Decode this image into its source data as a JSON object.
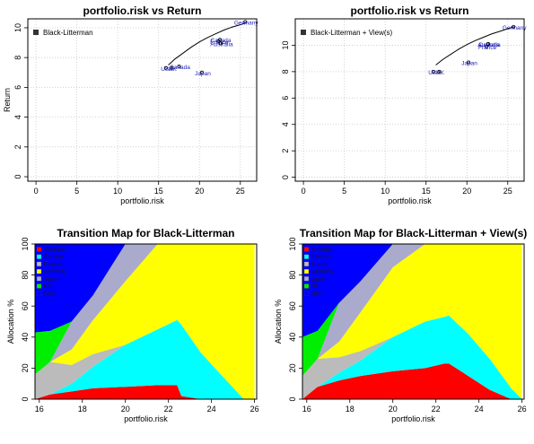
{
  "chart_data": [
    {
      "type": "scatter",
      "title": "portfolio.risk vs Return",
      "xlabel": "portfolio.risk",
      "ylabel": "Return",
      "xlim": [
        -1,
        27
      ],
      "ylim": [
        -0.3,
        10.6
      ],
      "xticks": [
        "0",
        "5",
        "10",
        "15",
        "20",
        "25"
      ],
      "yticks": [
        "0",
        "2",
        "4",
        "6",
        "8",
        "10"
      ],
      "grid": true,
      "legend": [
        "Black-Litterman"
      ],
      "legend_position": "top-left",
      "frontier": {
        "x": [
          16.2,
          17,
          18,
          19,
          20,
          21,
          22,
          23,
          24,
          25,
          25.8
        ],
        "y": [
          7.5,
          7.9,
          8.3,
          8.7,
          9.05,
          9.35,
          9.6,
          9.85,
          10.05,
          10.2,
          10.35
        ]
      },
      "points": [
        {
          "label": "USA",
          "x": 15.9,
          "y": 7.3
        },
        {
          "label": "UK",
          "x": 16.6,
          "y": 7.3
        },
        {
          "label": "Canada",
          "x": 17.5,
          "y": 7.4
        },
        {
          "label": "Japan",
          "x": 20.3,
          "y": 7.0
        },
        {
          "label": "France",
          "x": 22.3,
          "y": 9.1
        },
        {
          "label": "Canada",
          "x": 22.5,
          "y": 9.2
        },
        {
          "label": "Australia",
          "x": 22.6,
          "y": 8.95
        },
        {
          "label": "Germany",
          "x": 25.6,
          "y": 10.4
        }
      ]
    },
    {
      "type": "scatter",
      "title": "portfolio.risk vs Return",
      "xlabel": "portfolio.risk",
      "ylabel": "",
      "xlim": [
        -1,
        27
      ],
      "ylim": [
        -0.3,
        12.0
      ],
      "xticks": [
        "0",
        "5",
        "10",
        "15",
        "20",
        "25"
      ],
      "yticks": [
        "0",
        "2",
        "4",
        "6",
        "8",
        "10"
      ],
      "grid": true,
      "legend": [
        "Black-Litterman + View(s)"
      ],
      "legend_position": "top-left",
      "frontier": {
        "x": [
          16.2,
          17,
          18,
          19,
          20,
          21,
          22,
          23,
          24,
          25,
          25.8
        ],
        "y": [
          8.5,
          8.9,
          9.3,
          9.7,
          10.05,
          10.35,
          10.6,
          10.85,
          11.05,
          11.25,
          11.4
        ]
      },
      "points": [
        {
          "label": "USA",
          "x": 15.9,
          "y": 8.0
        },
        {
          "label": "UK",
          "x": 16.6,
          "y": 8.0
        },
        {
          "label": "Japan",
          "x": 20.2,
          "y": 8.7
        },
        {
          "label": "France",
          "x": 22.4,
          "y": 9.9
        },
        {
          "label": "Canada",
          "x": 22.6,
          "y": 10.1
        },
        {
          "label": "Australia",
          "x": 22.6,
          "y": 10.1
        },
        {
          "label": "Germany",
          "x": 25.7,
          "y": 11.4
        }
      ]
    },
    {
      "type": "area",
      "title": "Transition Map for Black-Litterman",
      "xlabel": "portfolio.risk",
      "ylabel": "Allocation %",
      "xlim": [
        15.8,
        26.1
      ],
      "ylim": [
        0,
        100
      ],
      "xticks": [
        "16",
        "18",
        "20",
        "22",
        "24",
        "26"
      ],
      "yticks": [
        "0",
        "20",
        "40",
        "60",
        "80",
        "100"
      ],
      "legend_position": "top-left",
      "x": [
        15.8,
        16.5,
        17.5,
        18.5,
        20.0,
        21.5,
        22.4,
        22.6,
        23.5,
        24.5,
        25.5,
        26.0
      ],
      "series": [
        {
          "name": "Australia",
          "color": "#ff0000",
          "values": [
            0,
            3,
            5,
            7,
            8,
            9,
            9,
            2,
            0,
            0,
            0,
            0
          ]
        },
        {
          "name": "Canada",
          "color": "#00ffff",
          "values": [
            0,
            0,
            5,
            14,
            27,
            36,
            42,
            46,
            30,
            15,
            0,
            0
          ]
        },
        {
          "name": "France",
          "color": "#bbbbbb",
          "values": [
            16,
            21,
            12,
            8,
            0,
            0,
            0,
            0,
            0,
            0,
            0,
            0
          ]
        },
        {
          "name": "Germany",
          "color": "#ffff00",
          "values": [
            0,
            0,
            10,
            22,
            41,
            55,
            49,
            52,
            70,
            85,
            100,
            100
          ]
        },
        {
          "name": "Japan",
          "color": "#aaaacc",
          "values": [
            0,
            0,
            18,
            16,
            24,
            0,
            0,
            0,
            0,
            0,
            0,
            0
          ]
        },
        {
          "name": "UK",
          "color": "#00ee00",
          "values": [
            27,
            20,
            0,
            0,
            0,
            0,
            0,
            0,
            0,
            0,
            0,
            0
          ]
        },
        {
          "name": "USA",
          "color": "#0000ff",
          "values": [
            57,
            56,
            50,
            33,
            0,
            0,
            0,
            0,
            0,
            0,
            0,
            0
          ]
        }
      ]
    },
    {
      "type": "area",
      "title": "Transition Map for Black-Litterman + View(s)",
      "xlabel": "portfolio.risk",
      "ylabel": "Allocation %",
      "xlim": [
        15.8,
        26.1
      ],
      "ylim": [
        0,
        100
      ],
      "xticks": [
        "16",
        "18",
        "20",
        "22",
        "24",
        "26"
      ],
      "yticks": [
        "0",
        "20",
        "40",
        "60",
        "80",
        "100"
      ],
      "legend_position": "top-left",
      "x": [
        15.8,
        16.5,
        17.5,
        18.5,
        20.0,
        21.5,
        22.4,
        22.6,
        23.5,
        24.5,
        25.5,
        26.0
      ],
      "series": [
        {
          "name": "Australia",
          "color": "#ff0000",
          "values": [
            0,
            8,
            12,
            15,
            18,
            20,
            23,
            23,
            15,
            6,
            0,
            0
          ]
        },
        {
          "name": "Canada",
          "color": "#00ffff",
          "values": [
            0,
            0,
            5,
            10,
            22,
            30,
            30,
            31,
            27,
            20,
            7,
            0
          ]
        },
        {
          "name": "France",
          "color": "#bbbbbb",
          "values": [
            15,
            18,
            10,
            6,
            0,
            0,
            0,
            0,
            0,
            0,
            0,
            0
          ]
        },
        {
          "name": "Germany",
          "color": "#ffff00",
          "values": [
            0,
            0,
            10,
            25,
            45,
            50,
            47,
            46,
            58,
            74,
            93,
            100
          ]
        },
        {
          "name": "Japan",
          "color": "#aaaacc",
          "values": [
            0,
            0,
            25,
            20,
            15,
            0,
            0,
            0,
            0,
            0,
            0,
            0
          ]
        },
        {
          "name": "UK",
          "color": "#00ee00",
          "values": [
            25,
            18,
            0,
            0,
            0,
            0,
            0,
            0,
            0,
            0,
            0,
            0
          ]
        },
        {
          "name": "USA",
          "color": "#0000ff",
          "values": [
            60,
            56,
            38,
            24,
            0,
            0,
            0,
            0,
            0,
            0,
            0,
            0
          ]
        }
      ]
    }
  ]
}
